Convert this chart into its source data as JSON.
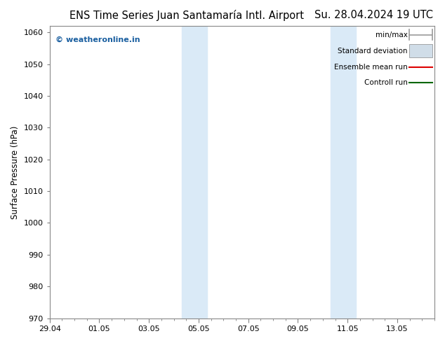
{
  "title_left": "ENS Time Series Juan Santamaría Intl. Airport",
  "title_right": "Su. 28.04.2024 19 UTC",
  "ylabel": "Surface Pressure (hPa)",
  "ylim": [
    970,
    1062
  ],
  "yticks": [
    970,
    980,
    990,
    1000,
    1010,
    1020,
    1030,
    1040,
    1050,
    1060
  ],
  "xtick_labels": [
    "29.04",
    "01.05",
    "03.05",
    "05.05",
    "07.05",
    "09.05",
    "11.05",
    "13.05"
  ],
  "xtick_positions_days": [
    0,
    2,
    4,
    6,
    8,
    10,
    12,
    14
  ],
  "xlim": [
    0,
    15.5
  ],
  "shade_bands": [
    {
      "start": 5.33,
      "end": 5.83
    },
    {
      "start": 5.83,
      "end": 6.33
    },
    {
      "start": 11.33,
      "end": 11.83
    },
    {
      "start": 11.83,
      "end": 12.33
    }
  ],
  "shade_color": "#daeaf7",
  "background_color": "#ffffff",
  "watermark": "© weatheronline.in",
  "watermark_color": "#1a5fa0",
  "legend_items": [
    {
      "label": "min/max",
      "color": "#999999",
      "style": "minmax"
    },
    {
      "label": "Standard deviation",
      "color": "#d0dde8",
      "style": "rect"
    },
    {
      "label": "Ensemble mean run",
      "color": "#dd0000",
      "style": "line"
    },
    {
      "label": "Controll run",
      "color": "#006600",
      "style": "line"
    }
  ],
  "title_fontsize": 10.5,
  "tick_fontsize": 8,
  "legend_fontsize": 7.5,
  "ylabel_fontsize": 8.5
}
